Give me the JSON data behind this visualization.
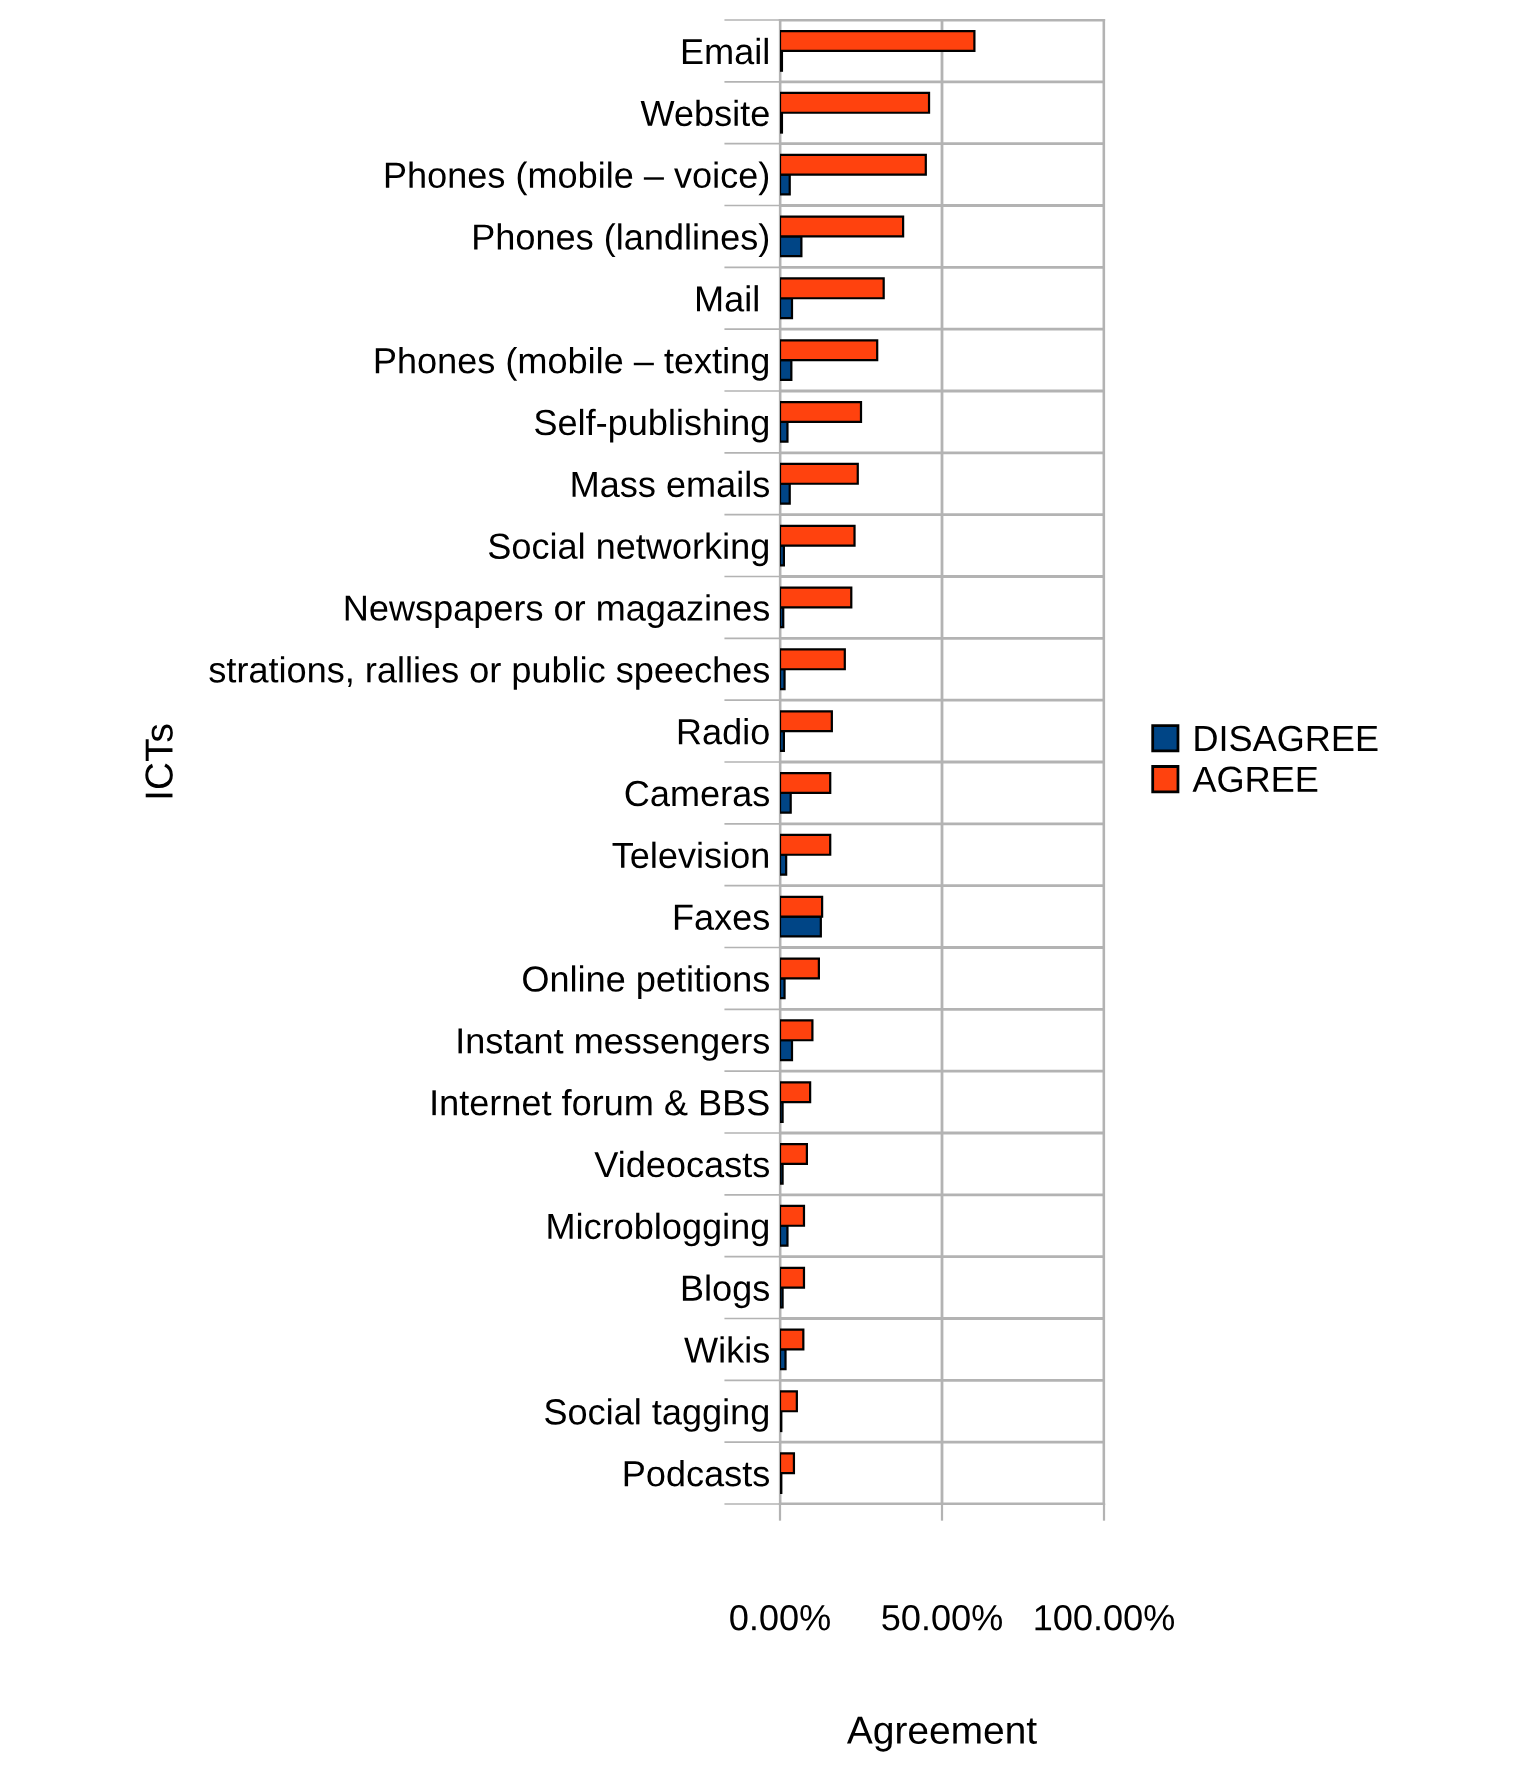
{
  "chart_data": {
    "type": "bar",
    "orientation": "horizontal",
    "xlabel": "Agreement",
    "ylabel": "ICTs",
    "categories": [
      "Email",
      "Website",
      "Phones (mobile – voice)",
      "Phones (landlines)",
      "Mail ",
      "Phones (mobile – texting",
      "Self-publishing",
      "Mass emails",
      "Social networking",
      "Newspapers or magazines",
      "strations, rallies or public speeches",
      "Radio",
      "Cameras",
      "Television",
      "Faxes",
      "Online petitions",
      "Instant messengers",
      "Internet forum & BBS",
      "Videocasts",
      "Microblogging",
      "Blogs",
      "Wikis",
      "Social tagging",
      "Podcasts"
    ],
    "series": [
      {
        "name": "DISAGREE",
        "color": "#004586",
        "values": [
          0.6,
          0.6,
          3,
          6.6,
          3.7,
          3.5,
          2.3,
          3,
          1.2,
          1,
          1.4,
          1.2,
          3.3,
          1.9,
          12.6,
          1.4,
          3.7,
          0.8,
          0.8,
          2.3,
          0.8,
          1.7,
          0.4,
          0.4
        ]
      },
      {
        "name": "AGREE",
        "color": "#ff420e",
        "values": [
          60,
          46,
          45,
          38,
          32,
          30,
          25,
          24,
          23,
          22,
          20,
          16,
          15.5,
          15.5,
          13,
          12,
          10,
          9.3,
          8.3,
          7.4,
          7.4,
          7.2,
          5.2,
          4.3
        ]
      }
    ],
    "xlim": [
      0,
      100
    ],
    "xticks": [
      {
        "value": 0,
        "label": "0.00%"
      },
      {
        "value": 50,
        "label": "50.00%"
      },
      {
        "value": 100,
        "label": "100.00%"
      }
    ],
    "grid": true,
    "legend": "right"
  }
}
